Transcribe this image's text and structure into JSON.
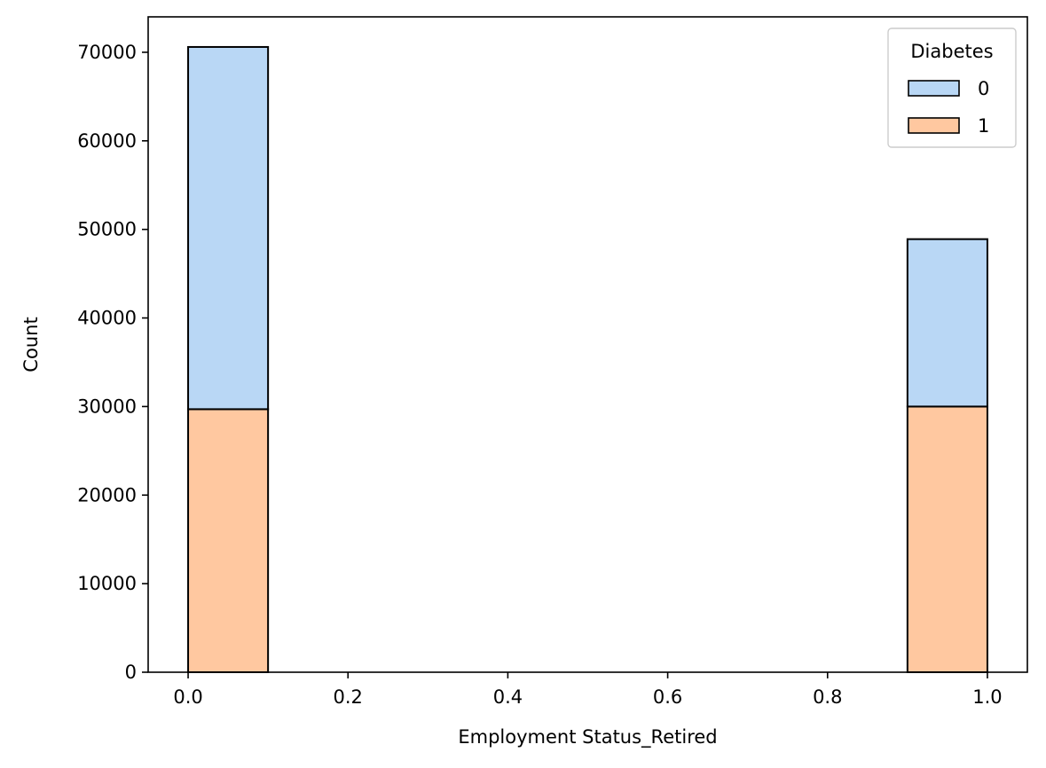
{
  "chart_data": {
    "type": "bar",
    "stacked": true,
    "xlabel": "Employment Status_Retired",
    "ylabel": "Count",
    "xlim": [
      -0.05,
      1.05
    ],
    "ylim": [
      0,
      74000
    ],
    "xticks": [
      "0.0",
      "0.2",
      "0.4",
      "0.6",
      "0.8",
      "1.0"
    ],
    "yticks": [
      "0",
      "10000",
      "20000",
      "30000",
      "40000",
      "50000",
      "60000",
      "70000"
    ],
    "grid": false,
    "legend": {
      "title": "Diabetes",
      "placement": "top-right",
      "entries": [
        "0",
        "1"
      ]
    },
    "bins": [
      {
        "x0": 0.0,
        "x1": 0.1
      },
      {
        "x0": 0.9,
        "x1": 1.0
      }
    ],
    "series": [
      {
        "name": "1",
        "color": "#FFC8A0",
        "values": [
          29700,
          30000
        ]
      },
      {
        "name": "0",
        "color": "#B9D7F5",
        "values": [
          40900,
          18900
        ]
      }
    ]
  }
}
